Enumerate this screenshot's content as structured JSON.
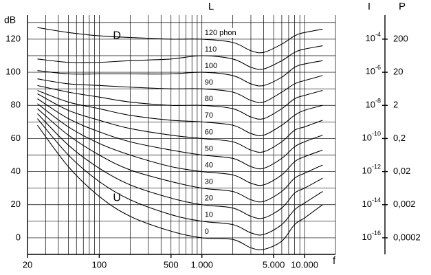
{
  "chart_data": {
    "type": "line",
    "title": "L",
    "ylabel": "dB",
    "xlabel": "f",
    "log_x": true,
    "grid": true,
    "xlim": [
      20,
      20000
    ],
    "ylim": [
      -10,
      134.5
    ],
    "xticks": [
      20,
      100,
      500,
      {
        "value": 1000,
        "label": "1.000"
      },
      {
        "value": 5000,
        "label": "5.000"
      },
      {
        "value": 10000,
        "label": "10.000"
      }
    ],
    "yticks": [
      0,
      20,
      40,
      60,
      80,
      100,
      120
    ],
    "xgrid": [
      20,
      30,
      40,
      50,
      60,
      70,
      80,
      90,
      100,
      200,
      300,
      400,
      500,
      600,
      700,
      800,
      900,
      1000,
      2000,
      3000,
      4000,
      5000,
      6000,
      7000,
      8000,
      9000,
      10000,
      20000
    ],
    "ygrid": [
      -10,
      0,
      10,
      20,
      30,
      40,
      50,
      60,
      70,
      80,
      90,
      100,
      110,
      120,
      130
    ],
    "x": [
      25,
      50,
      100,
      200,
      500,
      1000,
      2000,
      3000,
      4000,
      6000,
      8000,
      10000,
      15000
    ],
    "series": [
      {
        "name": "0",
        "color": "#000000",
        "values": [
          68,
          43,
          25,
          13,
          4,
          0,
          -1,
          -6,
          -7,
          -2,
          8,
          12,
          20
        ]
      },
      {
        "name": "10",
        "color": "#000000",
        "values": [
          72,
          50,
          34,
          23,
          14,
          10,
          8,
          3,
          2,
          8,
          17,
          21,
          28
        ]
      },
      {
        "name": "20",
        "color": "#000000",
        "values": [
          75,
          56,
          42,
          32,
          24,
          20,
          18,
          13,
          12,
          18,
          27,
          30,
          36
        ]
      },
      {
        "name": "30",
        "color": "#000000",
        "values": [
          78,
          62,
          50,
          41,
          34,
          30,
          28,
          23,
          22,
          28,
          36,
          39,
          44
        ]
      },
      {
        "name": "40",
        "color": "#000000",
        "values": [
          81,
          67,
          57,
          50,
          43,
          40,
          38,
          33,
          32,
          38,
          46,
          49,
          53
        ]
      },
      {
        "name": "50",
        "color": "#000000",
        "values": [
          84,
          72,
          64,
          58,
          53,
          50,
          48,
          43,
          42,
          48,
          55,
          58,
          62
        ]
      },
      {
        "name": "60",
        "color": "#000000",
        "values": [
          87,
          77,
          71,
          66,
          62,
          60,
          58,
          53,
          52,
          58,
          65,
          67,
          71
        ]
      },
      {
        "name": "70",
        "color": "#000000",
        "values": [
          89,
          82,
          78,
          74,
          71,
          70,
          68,
          63,
          62,
          68,
          74,
          77,
          80
        ]
      },
      {
        "name": "80",
        "color": "#000000",
        "values": [
          92,
          88,
          85,
          82,
          80,
          80,
          78,
          73,
          72,
          78,
          84,
          86,
          89
        ]
      },
      {
        "name": "90",
        "color": "#000000",
        "values": [
          96,
          93,
          92,
          91,
          90,
          90,
          88,
          83,
          82,
          88,
          93,
          95,
          98
        ]
      },
      {
        "name": "100",
        "color": "#000000",
        "values": [
          101,
          99,
          99,
          99,
          99,
          100,
          98,
          93,
          92,
          97,
          103,
          105,
          107
        ]
      },
      {
        "name": "110",
        "color": "#000000",
        "values": [
          108,
          106,
          106,
          107,
          108,
          110,
          108,
          103,
          102,
          107,
          112,
          114,
          116
        ]
      },
      {
        "name": "120 phon",
        "color": "#000000",
        "values": [
          127,
          124,
          122,
          121,
          120,
          120,
          118,
          113,
          112,
          117,
          122,
          124,
          126
        ]
      }
    ],
    "annotations": [
      {
        "text": "D",
        "x": 100,
        "y": 122
      },
      {
        "text": "U",
        "x": 100,
        "y": 24
      }
    ],
    "right_scales": [
      {
        "name": "I",
        "ticks": [
          {
            "db": 120,
            "label": "10",
            "exponent": "-4"
          },
          {
            "db": 100,
            "label": "10",
            "exponent": "-6"
          },
          {
            "db": 80,
            "label": "10",
            "exponent": "-8"
          },
          {
            "db": 60,
            "label": "10",
            "exponent": "-10"
          },
          {
            "db": 40,
            "label": "10",
            "exponent": "-12"
          },
          {
            "db": 20,
            "label": "10",
            "exponent": "-14"
          },
          {
            "db": 0,
            "label": "10",
            "exponent": "-16"
          }
        ]
      },
      {
        "name": "P",
        "ticks": [
          {
            "db": 120,
            "label": "200"
          },
          {
            "db": 100,
            "label": "20"
          },
          {
            "db": 80,
            "label": "2"
          },
          {
            "db": 60,
            "label": "0,2"
          },
          {
            "db": 40,
            "label": "0,02"
          },
          {
            "db": 20,
            "label": "0,002"
          },
          {
            "db": 0,
            "label": "0,0002"
          }
        ]
      }
    ]
  }
}
